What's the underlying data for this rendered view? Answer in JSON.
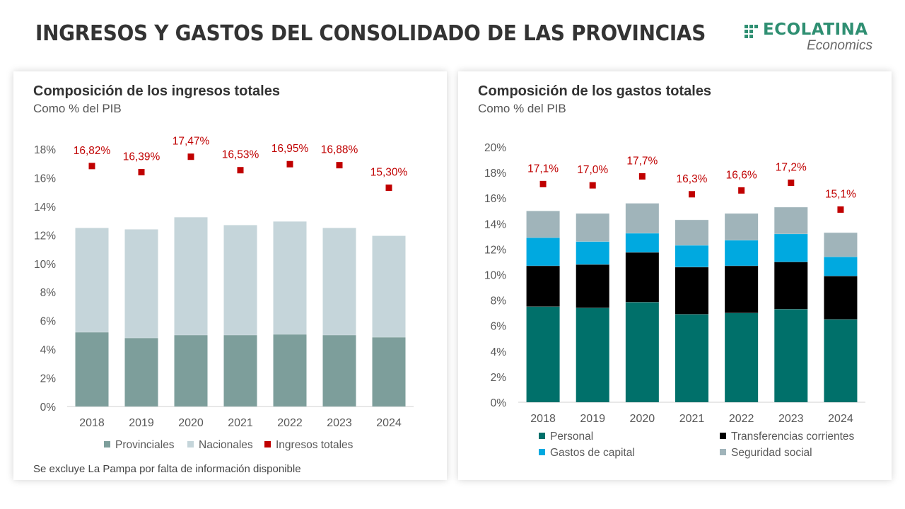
{
  "page": {
    "title": "INGRESOS Y GASTOS DEL CONSOLIDADO DE LAS PROVINCIAS"
  },
  "logo": {
    "name": "ECOLATINA",
    "subtitle": "Economics",
    "color": "#2f8f72"
  },
  "left_panel": {
    "note": "Se excluye La Pampa por falta de información disponible"
  },
  "chart_data": [
    {
      "type": "bar",
      "stacked": true,
      "title": "Composición de los ingresos totales",
      "subtitle": "Como % del PIB",
      "categories": [
        "2018",
        "2019",
        "2020",
        "2021",
        "2022",
        "2023",
        "2024"
      ],
      "ylim": [
        0,
        18
      ],
      "yticks": [
        "0%",
        "2%",
        "4%",
        "6%",
        "8%",
        "10%",
        "12%",
        "14%",
        "16%",
        "18%"
      ],
      "series": [
        {
          "name": "Provinciales",
          "color": "#7d9e9b",
          "values": [
            5.2,
            4.8,
            5.0,
            5.0,
            5.05,
            5.0,
            4.85
          ]
        },
        {
          "name": "Nacionales",
          "color": "#c5d5da",
          "values": [
            7.3,
            7.6,
            8.25,
            7.7,
            7.9,
            7.5,
            7.1
          ]
        }
      ],
      "markers": {
        "name": "Ingresos totales",
        "color": "#c00000",
        "values": [
          16.82,
          16.39,
          17.47,
          16.53,
          16.95,
          16.88,
          15.3
        ],
        "labels": [
          "16,82%",
          "16,39%",
          "17,47%",
          "16,53%",
          "16,95%",
          "16,88%",
          "15,30%"
        ]
      },
      "grid": false,
      "legend": "bottom"
    },
    {
      "type": "bar",
      "stacked": true,
      "title": "Composición de los gastos totales",
      "subtitle": "Como % del PIB",
      "categories": [
        "2018",
        "2019",
        "2020",
        "2021",
        "2022",
        "2023",
        "2024"
      ],
      "ylim": [
        0,
        20
      ],
      "yticks": [
        "0%",
        "2%",
        "4%",
        "6%",
        "8%",
        "10%",
        "12%",
        "14%",
        "16%",
        "18%",
        "20%"
      ],
      "series": [
        {
          "name": "Personal",
          "color": "#00706a",
          "values": [
            7.5,
            7.4,
            7.85,
            6.9,
            7.0,
            7.3,
            6.5
          ]
        },
        {
          "name": "Transferencias corrientes",
          "color": "#000000",
          "values": [
            3.2,
            3.4,
            3.9,
            3.7,
            3.7,
            3.7,
            3.4
          ]
        },
        {
          "name": "Gastos de capital",
          "color": "#00a9e0",
          "values": [
            2.2,
            1.8,
            1.5,
            1.7,
            2.0,
            2.2,
            1.5
          ]
        },
        {
          "name": "Seguridad social",
          "color": "#a0b4ba",
          "values": [
            2.1,
            2.2,
            2.35,
            2.0,
            2.1,
            2.1,
            1.9
          ]
        }
      ],
      "markers": {
        "name": "",
        "color": "#c00000",
        "values": [
          17.1,
          17.0,
          17.7,
          16.3,
          16.6,
          17.2,
          15.1
        ],
        "labels": [
          "17,1%",
          "17,0%",
          "17,7%",
          "16,3%",
          "16,6%",
          "17,2%",
          "15,1%"
        ]
      },
      "grid": false,
      "legend": "bottom"
    }
  ]
}
